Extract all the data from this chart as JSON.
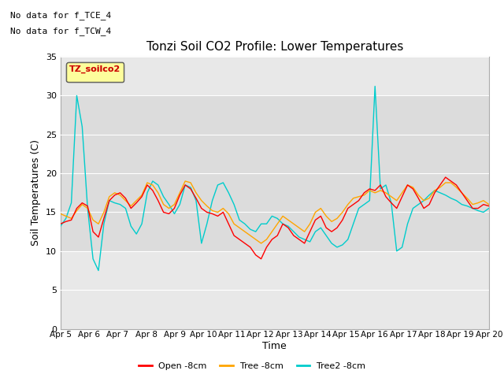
{
  "title": "Tonzi Soil CO2 Profile: Lower Temperatures",
  "xlabel": "Time",
  "ylabel": "Soil Temperatures (C)",
  "annotations": [
    "No data for f_TCE_4",
    "No data for f_TCW_4"
  ],
  "legend_box_label": "TZ_soilco2",
  "legend_entries": [
    "Open -8cm",
    "Tree -8cm",
    "Tree2 -8cm"
  ],
  "legend_colors": [
    "#ff0000",
    "#ffa500",
    "#00cccc"
  ],
  "ylim": [
    0,
    35
  ],
  "yticks": [
    0,
    5,
    10,
    15,
    20,
    25,
    30,
    35
  ],
  "shade_band": [
    10,
    30
  ],
  "shade_color": "#dcdcdc",
  "background_color": "#ffffff",
  "plot_bg_color": "#e8e8e8",
  "x_labels": [
    "Apr 5",
    "Apr 6",
    "Apr 7",
    "Apr 8",
    "Apr 9",
    "Apr 10",
    "Apr 11",
    "Apr 12",
    "Apr 13",
    "Apr 14",
    "Apr 15",
    "Apr 16",
    "Apr 17",
    "Apr 18",
    "Apr 19",
    "Apr 20"
  ],
  "open_data": [
    13.5,
    13.8,
    14.0,
    15.5,
    16.2,
    15.8,
    12.5,
    11.8,
    14.2,
    16.5,
    17.2,
    17.5,
    16.8,
    15.5,
    16.2,
    17.0,
    18.5,
    17.8,
    16.5,
    15.0,
    14.8,
    15.5,
    17.2,
    18.5,
    18.0,
    16.8,
    15.5,
    15.0,
    14.8,
    14.5,
    15.0,
    13.5,
    12.0,
    11.5,
    11.0,
    10.5,
    9.5,
    9.0,
    10.5,
    11.5,
    12.0,
    13.5,
    13.0,
    12.0,
    11.5,
    11.0,
    12.5,
    14.0,
    14.5,
    13.0,
    12.5,
    13.0,
    14.0,
    15.5,
    16.0,
    16.5,
    17.5,
    18.0,
    17.8,
    18.5,
    17.0,
    16.2,
    15.5,
    17.0,
    18.5,
    18.0,
    16.8,
    15.5,
    16.0,
    17.5,
    18.5,
    19.5,
    19.0,
    18.5,
    17.5,
    16.5,
    15.5,
    15.5,
    16.0,
    15.8
  ],
  "tree_data": [
    14.8,
    14.5,
    14.2,
    15.2,
    16.0,
    15.5,
    14.0,
    13.5,
    15.0,
    17.0,
    17.5,
    17.2,
    16.5,
    15.8,
    16.5,
    17.2,
    18.8,
    18.5,
    17.5,
    16.0,
    15.5,
    16.0,
    17.5,
    19.0,
    18.8,
    17.5,
    16.5,
    15.8,
    15.2,
    15.0,
    15.5,
    14.8,
    13.5,
    13.0,
    12.5,
    12.0,
    11.5,
    11.0,
    11.5,
    12.5,
    13.5,
    14.5,
    14.0,
    13.5,
    13.0,
    12.5,
    13.5,
    15.0,
    15.5,
    14.5,
    13.8,
    14.2,
    15.0,
    16.0,
    16.8,
    17.0,
    17.2,
    17.8,
    17.5,
    17.8,
    17.5,
    17.0,
    16.5,
    17.5,
    18.5,
    18.2,
    17.2,
    16.5,
    16.8,
    17.8,
    18.2,
    18.8,
    18.8,
    18.2,
    17.5,
    16.8,
    16.0,
    16.2,
    16.5,
    16.0
  ],
  "tree2_data": [
    13.2,
    14.2,
    16.2,
    30.0,
    26.0,
    15.5,
    9.0,
    7.5,
    13.5,
    16.5,
    16.2,
    16.0,
    15.5,
    13.2,
    12.2,
    13.5,
    17.5,
    19.0,
    18.5,
    17.0,
    16.0,
    14.8,
    16.0,
    18.5,
    18.2,
    16.5,
    11.0,
    13.5,
    16.5,
    18.5,
    18.8,
    17.5,
    16.0,
    14.0,
    13.5,
    12.8,
    12.5,
    13.5,
    13.5,
    14.5,
    14.2,
    13.5,
    13.2,
    12.5,
    11.8,
    11.5,
    11.2,
    12.5,
    13.0,
    12.0,
    11.0,
    10.5,
    10.8,
    11.5,
    13.5,
    15.5,
    16.0,
    16.5,
    31.2,
    18.0,
    18.5,
    16.2,
    10.0,
    10.5,
    13.5,
    15.5,
    16.0,
    16.5,
    17.2,
    17.8,
    17.5,
    17.2,
    16.8,
    16.5,
    16.0,
    15.8,
    15.5,
    15.2,
    15.0,
    15.5
  ]
}
